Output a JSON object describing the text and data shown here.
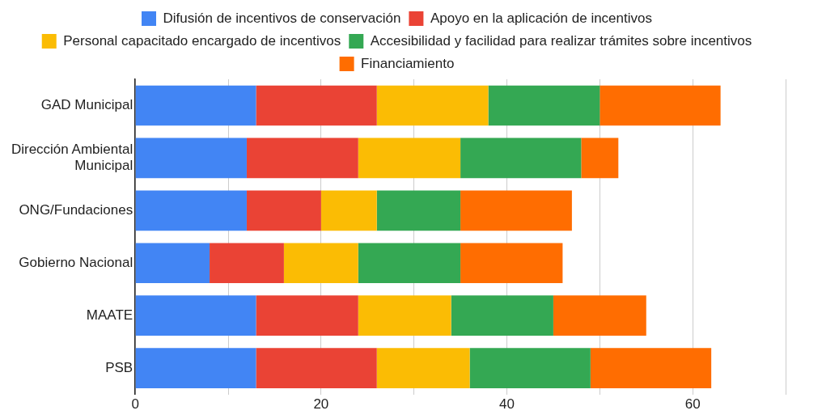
{
  "chart_data": {
    "type": "bar",
    "orientation": "horizontal",
    "stacked": true,
    "categories": [
      "GAD Municipal",
      "Dirección Ambiental Municipal",
      "ONG/Fundaciones",
      "Gobierno Nacional",
      "MAATE",
      "PSB"
    ],
    "series": [
      {
        "name": "Difusión de incentivos de conservación",
        "color": "#4285f4",
        "values": [
          13,
          12,
          12,
          8,
          13,
          13
        ]
      },
      {
        "name": "Apoyo en la aplicación de incentivos",
        "color": "#ea4335",
        "values": [
          13,
          12,
          8,
          8,
          11,
          13
        ]
      },
      {
        "name": "Personal capacitado encargado de incentivos",
        "color": "#fbbc04",
        "values": [
          12,
          11,
          6,
          8,
          10,
          10
        ]
      },
      {
        "name": "Accesibilidad y facilidad para realizar trámites sobre incentivos",
        "color": "#34a853",
        "values": [
          12,
          13,
          9,
          11,
          11,
          13
        ]
      },
      {
        "name": "Financiamiento",
        "color": "#ff6d01",
        "values": [
          13,
          4,
          12,
          11,
          10,
          13
        ]
      }
    ],
    "xlim": [
      0,
      70
    ],
    "xticks": [
      0,
      {
        "value": 10,
        "label": null
      },
      20,
      {
        "value": 30,
        "label": null
      },
      40,
      {
        "value": 50,
        "label": null
      },
      60,
      {
        "value": 70,
        "label": null
      }
    ],
    "grid": "x",
    "legend": "top"
  }
}
